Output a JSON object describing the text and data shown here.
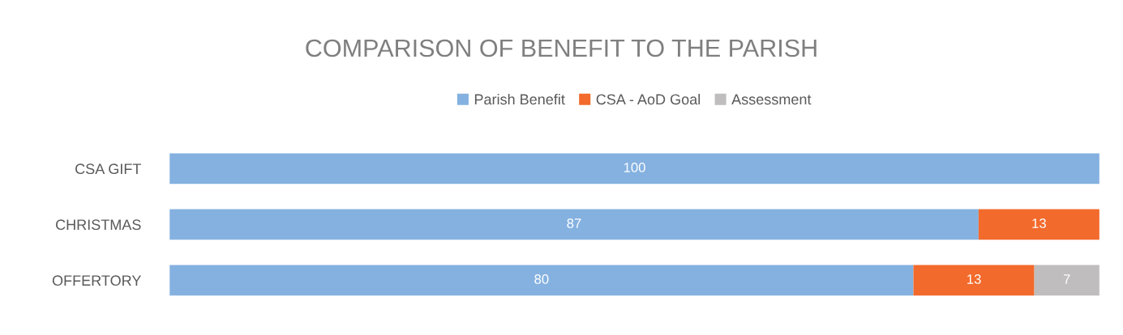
{
  "chart_data": {
    "type": "bar",
    "orientation": "horizontal",
    "stacked": true,
    "title": "COMPARISON OF BENEFIT TO THE PARISH",
    "categories": [
      "CSA GIFT",
      "CHRISTMAS",
      "OFFERTORY"
    ],
    "series": [
      {
        "name": "Parish Benefit",
        "color": "#84b1e0",
        "values": [
          100,
          87,
          80
        ]
      },
      {
        "name": "CSA - AoD Goal",
        "color": "#f26a2c",
        "values": [
          null,
          13,
          13
        ]
      },
      {
        "name": "Assessment",
        "color": "#bfbdbd",
        "values": [
          null,
          null,
          7
        ]
      }
    ],
    "data_labels": true,
    "legend": "top",
    "grid": false
  }
}
